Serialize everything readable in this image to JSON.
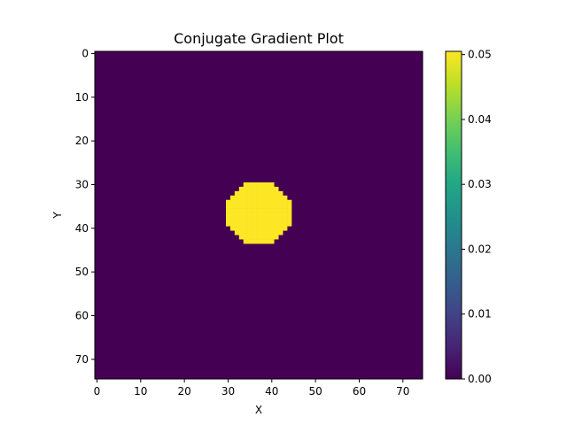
{
  "chart_data": {
    "type": "heatmap",
    "title": "Conjugate Gradient Plot",
    "xlabel": "X",
    "ylabel": "Y",
    "grid": false,
    "xlim": [
      0,
      75
    ],
    "ylim": [
      75,
      0
    ],
    "xticks": [
      0,
      10,
      20,
      30,
      40,
      50,
      60,
      70
    ],
    "yticks": [
      0,
      10,
      20,
      30,
      40,
      50,
      60,
      70
    ],
    "colormap": "viridis",
    "colorbar": {
      "vmin": 0.0,
      "vmax": 0.0505,
      "ticks": [
        "0.00",
        "0.01",
        "0.02",
        "0.03",
        "0.04",
        "0.05"
      ]
    },
    "background_value": 0.0,
    "blob": {
      "shape": "disc",
      "center_x": 37,
      "center_y": 37,
      "x_range": [
        30,
        44
      ],
      "y_range": [
        30,
        43
      ],
      "value": 0.0505
    },
    "colors": {
      "low": "#440154",
      "high": "#fde725"
    }
  }
}
